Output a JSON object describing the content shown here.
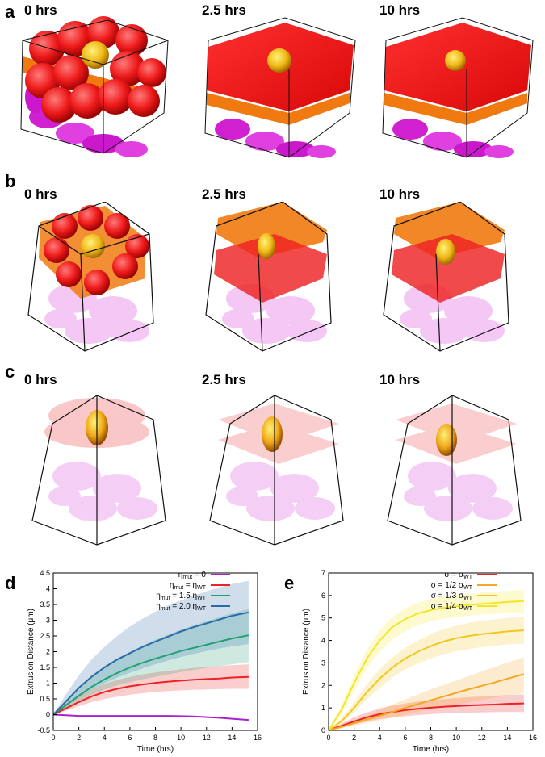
{
  "panels": {
    "a": {
      "letter": "a",
      "times": [
        "0 hrs",
        "2.5 hrs",
        "10 hrs"
      ]
    },
    "b": {
      "letter": "b",
      "times": [
        "0 hrs",
        "2.5 hrs",
        "10 hrs"
      ]
    },
    "c": {
      "letter": "c",
      "times": [
        "0 hrs",
        "2.5 hrs",
        "10 hrs"
      ]
    },
    "d": {
      "letter": "d"
    },
    "e": {
      "letter": "e"
    }
  },
  "colors": {
    "red": "#ee2222",
    "orange": "#f07a10",
    "magenta": "#dd22dd",
    "yellow": "#f2c020",
    "teal": "#30a0a0",
    "purple": "#aa22cc",
    "green": "#22a070",
    "blue": "#2a6aa8",
    "light_orange": "#f5a623",
    "light_yellow": "#f2d22a",
    "bright_yellow": "#f5ee30"
  },
  "chart_data": [
    {
      "type": "line",
      "panel": "d",
      "ylabel": "Extrusion Distance (μm)",
      "xlabel": "Time (hrs)",
      "xlim": [
        0,
        16
      ],
      "ylim": [
        -0.5,
        4.5
      ],
      "x_ticks": [
        "0",
        "2",
        "4",
        "6",
        "8",
        "10",
        "12",
        "14",
        "16"
      ],
      "y_ticks": [
        "-0.5",
        "0",
        "0.5",
        "1",
        "1.5",
        "2",
        "2.5",
        "3",
        "3.5",
        "4",
        "4.5"
      ],
      "legend": [
        {
          "base": "η",
          "sub": "mut",
          "rest": " = 0"
        },
        {
          "base": "η",
          "sub": "mut",
          "rest": " = η",
          "sub2": "WT"
        },
        {
          "base": "η",
          "sub": "mut",
          "rest": " = 1.5 η",
          "sub2": "WT"
        },
        {
          "base": "η",
          "sub": "mut",
          "rest": " = 2.0 η",
          "sub2": "WT"
        }
      ],
      "x": [
        0,
        1,
        2,
        3,
        4,
        5,
        6,
        7,
        8,
        9,
        10,
        11,
        12,
        13,
        14,
        15.3
      ],
      "series": [
        {
          "name": "eta_mut = 0",
          "color": "#aa22cc",
          "values": [
            0,
            -0.02,
            -0.04,
            -0.04,
            -0.04,
            -0.04,
            -0.04,
            -0.04,
            -0.04,
            -0.04,
            -0.05,
            -0.06,
            -0.08,
            -0.1,
            -0.13,
            -0.17
          ],
          "lower": null,
          "upper": null
        },
        {
          "name": "eta_mut = eta_WT",
          "color": "#ee2222",
          "values": [
            0,
            0.2,
            0.4,
            0.58,
            0.72,
            0.82,
            0.9,
            0.96,
            1.01,
            1.05,
            1.08,
            1.11,
            1.13,
            1.15,
            1.18,
            1.2
          ],
          "lower": [
            0,
            0.12,
            0.27,
            0.4,
            0.5,
            0.57,
            0.63,
            0.68,
            0.72,
            0.75,
            0.77,
            0.79,
            0.8,
            0.81,
            0.82,
            0.82
          ],
          "upper": [
            0,
            0.3,
            0.58,
            0.8,
            0.98,
            1.1,
            1.2,
            1.28,
            1.34,
            1.39,
            1.44,
            1.48,
            1.51,
            1.54,
            1.57,
            1.6
          ]
        },
        {
          "name": "eta_mut = 1.5 eta_WT",
          "color": "#22a070",
          "values": [
            0,
            0.3,
            0.6,
            0.88,
            1.12,
            1.32,
            1.5,
            1.65,
            1.78,
            1.9,
            2.02,
            2.12,
            2.22,
            2.32,
            2.42,
            2.52
          ],
          "lower": [
            0,
            0.2,
            0.42,
            0.62,
            0.8,
            0.93,
            1.03,
            1.12,
            1.2,
            1.28,
            1.35,
            1.42,
            1.48,
            1.54,
            1.6,
            1.67
          ],
          "upper": [
            0,
            0.42,
            0.85,
            1.2,
            1.5,
            1.78,
            2.0,
            2.2,
            2.38,
            2.55,
            2.7,
            2.84,
            2.97,
            3.1,
            3.22,
            3.35
          ]
        },
        {
          "name": "eta_mut = 2.0 eta_WT",
          "color": "#2a6aa8",
          "values": [
            0,
            0.42,
            0.85,
            1.2,
            1.5,
            1.75,
            1.95,
            2.15,
            2.32,
            2.48,
            2.64,
            2.78,
            2.9,
            3.02,
            3.14,
            3.25
          ],
          "lower": [
            0,
            0.28,
            0.55,
            0.8,
            1.0,
            1.18,
            1.33,
            1.47,
            1.6,
            1.72,
            1.83,
            1.93,
            2.02,
            2.1,
            2.17,
            2.24
          ],
          "upper": [
            0,
            0.65,
            1.25,
            1.75,
            2.15,
            2.5,
            2.8,
            3.05,
            3.27,
            3.47,
            3.63,
            3.78,
            3.92,
            4.05,
            4.15,
            4.25
          ]
        }
      ]
    },
    {
      "type": "line",
      "panel": "e",
      "ylabel": "Extrusion Distance (μm)",
      "xlabel": "Time (hrs)",
      "xlim": [
        0,
        16
      ],
      "ylim": [
        0,
        7
      ],
      "x_ticks": [
        "0",
        "2",
        "4",
        "6",
        "8",
        "10",
        "12",
        "14",
        "16"
      ],
      "y_ticks": [
        "0",
        "1",
        "2",
        "3",
        "4",
        "5",
        "6",
        "7"
      ],
      "legend": [
        {
          "base": "σ",
          "sub": "",
          "rest": " = σ",
          "sub2": "WT"
        },
        {
          "base": "σ",
          "sub": "",
          "rest": " = 1/2 σ",
          "sub2": "WT"
        },
        {
          "base": "σ",
          "sub": "",
          "rest": " = 1/3 σ",
          "sub2": "WT"
        },
        {
          "base": "σ",
          "sub": "",
          "rest": " = 1/4 σ",
          "sub2": "WT"
        }
      ],
      "x": [
        0,
        1,
        2,
        3,
        4,
        5,
        6,
        7,
        8,
        9,
        10,
        11,
        12,
        13,
        14,
        15.3
      ],
      "series": [
        {
          "name": "sigma = sigma_WT",
          "color": "#ee2222",
          "values": [
            0,
            0.2,
            0.4,
            0.58,
            0.72,
            0.82,
            0.9,
            0.96,
            1.01,
            1.05,
            1.08,
            1.11,
            1.13,
            1.15,
            1.18,
            1.2
          ],
          "lower": [
            0,
            0.12,
            0.27,
            0.4,
            0.5,
            0.57,
            0.63,
            0.68,
            0.72,
            0.75,
            0.77,
            0.79,
            0.8,
            0.81,
            0.82,
            0.82
          ],
          "upper": [
            0,
            0.3,
            0.58,
            0.8,
            0.98,
            1.1,
            1.2,
            1.28,
            1.34,
            1.39,
            1.44,
            1.48,
            1.51,
            1.54,
            1.57,
            1.6
          ]
        },
        {
          "name": "sigma = 1/2 sigma_WT",
          "color": "#f5a623",
          "values": [
            0,
            0.15,
            0.32,
            0.48,
            0.65,
            0.82,
            1.0,
            1.17,
            1.34,
            1.5,
            1.67,
            1.83,
            1.98,
            2.13,
            2.3,
            2.5
          ],
          "lower": [
            0,
            0.1,
            0.22,
            0.33,
            0.45,
            0.57,
            0.7,
            0.82,
            0.94,
            1.05,
            1.15,
            1.25,
            1.35,
            1.45,
            1.55,
            1.65
          ],
          "upper": [
            0,
            0.22,
            0.45,
            0.68,
            0.92,
            1.15,
            1.38,
            1.6,
            1.82,
            2.02,
            2.22,
            2.42,
            2.62,
            2.82,
            3.02,
            3.25
          ]
        },
        {
          "name": "sigma = 1/3 sigma_WT",
          "color": "#f2c820",
          "values": [
            0,
            0.4,
            1.0,
            1.7,
            2.3,
            2.8,
            3.2,
            3.5,
            3.75,
            3.95,
            4.1,
            4.2,
            4.28,
            4.34,
            4.4,
            4.45
          ],
          "lower": [
            0,
            0.3,
            0.78,
            1.38,
            1.9,
            2.35,
            2.7,
            2.98,
            3.2,
            3.38,
            3.52,
            3.62,
            3.7,
            3.76,
            3.82,
            3.86
          ],
          "upper": [
            0,
            0.52,
            1.25,
            2.05,
            2.72,
            3.25,
            3.68,
            4.0,
            4.28,
            4.5,
            4.66,
            4.78,
            4.87,
            4.94,
            5.0,
            5.05
          ]
        },
        {
          "name": "sigma = 1/4 sigma_WT",
          "color": "#f5e625",
          "values": [
            0,
            0.9,
            2.1,
            3.2,
            4.0,
            4.6,
            4.95,
            5.2,
            5.35,
            5.45,
            5.52,
            5.58,
            5.63,
            5.67,
            5.71,
            5.75
          ],
          "lower": [
            0,
            0.7,
            1.75,
            2.75,
            3.5,
            4.05,
            4.42,
            4.68,
            4.85,
            4.96,
            5.04,
            5.1,
            5.15,
            5.19,
            5.22,
            5.25
          ],
          "upper": [
            0,
            1.1,
            2.45,
            3.6,
            4.45,
            5.05,
            5.42,
            5.68,
            5.85,
            5.96,
            6.03,
            6.08,
            6.12,
            6.16,
            6.2,
            6.25
          ]
        }
      ]
    }
  ]
}
